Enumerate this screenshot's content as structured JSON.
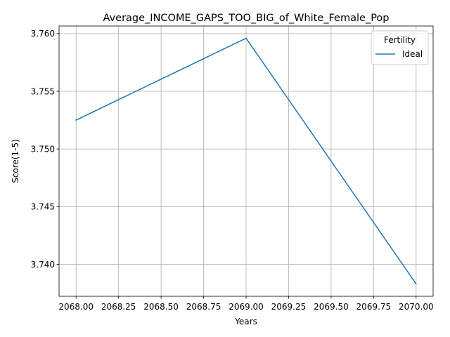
{
  "chart_data": {
    "type": "line",
    "title": "Average_INCOME_GAPS_TOO_BIG_of_White_Female_Pop",
    "xlabel": "Years",
    "ylabel": "Score(1-5)",
    "x": [
      2068.0,
      2069.0,
      2070.0
    ],
    "series": [
      {
        "name": "Ideal",
        "values": [
          3.7525,
          3.7596,
          3.7383
        ],
        "color": "#1f77b4"
      }
    ],
    "xlim": [
      2067.9,
      2070.1
    ],
    "ylim": [
      3.73723,
      3.76066
    ],
    "xticks": [
      "2068.00",
      "2068.25",
      "2068.50",
      "2068.75",
      "2069.00",
      "2069.25",
      "2069.50",
      "2069.75",
      "2070.00"
    ],
    "yticks": [
      "3.740",
      "3.745",
      "3.750",
      "3.755",
      "3.760"
    ],
    "grid": true,
    "legend": {
      "title": "Fertility",
      "placement": "top-right"
    }
  }
}
